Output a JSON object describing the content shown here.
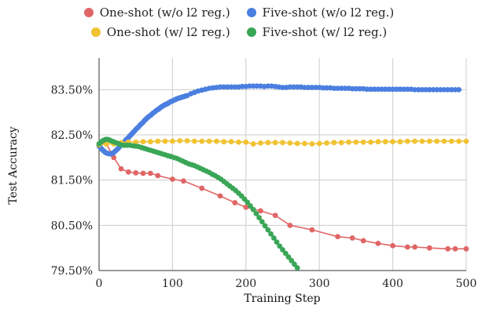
{
  "chart_data": {
    "type": "line",
    "xlabel": "Training Step",
    "ylabel": "Test Accuracy",
    "xlim": [
      0,
      500
    ],
    "ylim": [
      79.5,
      84.2
    ],
    "x_ticks": [
      0,
      100,
      200,
      300,
      400,
      500
    ],
    "x_tick_labels": [
      "0",
      "100",
      "200",
      "300",
      "400",
      "500"
    ],
    "y_ticks": [
      79.5,
      80.5,
      81.5,
      82.5,
      83.5
    ],
    "y_tick_labels": [
      "79.50%",
      "80.50%",
      "81.50%",
      "82.50%",
      "83.50%"
    ],
    "grid": true,
    "legend_position": "top",
    "series": [
      {
        "name": "One-shot (w/o l2 reg.)",
        "color": "#e06666",
        "points": [
          [
            0,
            82.3
          ],
          [
            5,
            82.35
          ],
          [
            10,
            82.3
          ],
          [
            20,
            82.0
          ],
          [
            30,
            81.75
          ],
          [
            40,
            81.68
          ],
          [
            50,
            81.66
          ],
          [
            60,
            81.65
          ],
          [
            70,
            81.65
          ],
          [
            80,
            81.6
          ],
          [
            100,
            81.52
          ],
          [
            115,
            81.48
          ],
          [
            140,
            81.32
          ],
          [
            165,
            81.15
          ],
          [
            185,
            81.0
          ],
          [
            200,
            80.9
          ],
          [
            220,
            80.82
          ],
          [
            240,
            80.72
          ],
          [
            260,
            80.5
          ],
          [
            290,
            80.4
          ],
          [
            325,
            80.25
          ],
          [
            345,
            80.22
          ],
          [
            360,
            80.16
          ],
          [
            380,
            80.1
          ],
          [
            400,
            80.05
          ],
          [
            420,
            80.02
          ],
          [
            430,
            80.02
          ],
          [
            450,
            80.0
          ],
          [
            475,
            79.98
          ],
          [
            485,
            79.98
          ],
          [
            500,
            79.98
          ]
        ]
      },
      {
        "name": "Five-shot (w/o l2 reg.)",
        "color": "#4a7fe0",
        "points": [
          [
            0,
            82.25
          ],
          [
            2,
            82.22
          ],
          [
            4,
            82.18
          ],
          [
            6,
            82.15
          ],
          [
            8,
            82.12
          ],
          [
            10,
            82.1
          ],
          [
            12,
            82.09
          ],
          [
            14,
            82.08
          ],
          [
            16,
            82.08
          ],
          [
            18,
            82.09
          ],
          [
            20,
            82.11
          ],
          [
            22,
            82.14
          ],
          [
            24,
            82.17
          ],
          [
            26,
            82.2
          ],
          [
            28,
            82.24
          ],
          [
            30,
            82.27
          ],
          [
            32,
            82.31
          ],
          [
            34,
            82.34
          ],
          [
            36,
            82.38
          ],
          [
            38,
            82.41
          ],
          [
            40,
            82.44
          ],
          [
            42,
            82.48
          ],
          [
            44,
            82.51
          ],
          [
            46,
            82.55
          ],
          [
            48,
            82.58
          ],
          [
            50,
            82.62
          ],
          [
            52,
            82.65
          ],
          [
            54,
            82.68
          ],
          [
            56,
            82.72
          ],
          [
            58,
            82.75
          ],
          [
            60,
            82.78
          ],
          [
            62,
            82.82
          ],
          [
            64,
            82.85
          ],
          [
            66,
            82.88
          ],
          [
            68,
            82.91
          ],
          [
            70,
            82.93
          ],
          [
            72,
            82.96
          ],
          [
            74,
            82.99
          ],
          [
            76,
            83.01
          ],
          [
            78,
            83.04
          ],
          [
            80,
            83.06
          ],
          [
            82,
            83.08
          ],
          [
            84,
            83.11
          ],
          [
            86,
            83.13
          ],
          [
            88,
            83.15
          ],
          [
            90,
            83.17
          ],
          [
            92,
            83.18
          ],
          [
            94,
            83.2
          ],
          [
            96,
            83.22
          ],
          [
            98,
            83.24
          ],
          [
            100,
            83.25
          ],
          [
            102,
            83.27
          ],
          [
            104,
            83.28
          ],
          [
            106,
            83.3
          ],
          [
            108,
            83.31
          ],
          [
            110,
            83.32
          ],
          [
            112,
            83.33
          ],
          [
            114,
            83.34
          ],
          [
            116,
            83.35
          ],
          [
            118,
            83.36
          ],
          [
            120,
            83.37
          ],
          [
            125,
            83.41
          ],
          [
            130,
            83.44
          ],
          [
            135,
            83.47
          ],
          [
            140,
            83.49
          ],
          [
            145,
            83.51
          ],
          [
            150,
            83.53
          ],
          [
            155,
            83.54
          ],
          [
            160,
            83.55
          ],
          [
            165,
            83.56
          ],
          [
            170,
            83.56
          ],
          [
            175,
            83.56
          ],
          [
            180,
            83.56
          ],
          [
            185,
            83.56
          ],
          [
            190,
            83.56
          ],
          [
            195,
            83.57
          ],
          [
            200,
            83.57
          ],
          [
            205,
            83.58
          ],
          [
            210,
            83.58
          ],
          [
            215,
            83.58
          ],
          [
            220,
            83.58
          ],
          [
            225,
            83.57
          ],
          [
            230,
            83.58
          ],
          [
            235,
            83.58
          ],
          [
            240,
            83.57
          ],
          [
            245,
            83.56
          ],
          [
            250,
            83.55
          ],
          [
            255,
            83.55
          ],
          [
            260,
            83.56
          ],
          [
            265,
            83.56
          ],
          [
            270,
            83.56
          ],
          [
            275,
            83.56
          ],
          [
            280,
            83.55
          ],
          [
            285,
            83.55
          ],
          [
            290,
            83.55
          ],
          [
            295,
            83.55
          ],
          [
            300,
            83.55
          ],
          [
            305,
            83.54
          ],
          [
            310,
            83.54
          ],
          [
            315,
            83.54
          ],
          [
            320,
            83.53
          ],
          [
            325,
            83.53
          ],
          [
            330,
            83.53
          ],
          [
            335,
            83.53
          ],
          [
            340,
            83.53
          ],
          [
            345,
            83.52
          ],
          [
            350,
            83.52
          ],
          [
            355,
            83.52
          ],
          [
            360,
            83.52
          ],
          [
            365,
            83.51
          ],
          [
            370,
            83.51
          ],
          [
            375,
            83.51
          ],
          [
            380,
            83.51
          ],
          [
            385,
            83.51
          ],
          [
            390,
            83.51
          ],
          [
            395,
            83.51
          ],
          [
            400,
            83.51
          ],
          [
            405,
            83.51
          ],
          [
            410,
            83.51
          ],
          [
            415,
            83.51
          ],
          [
            420,
            83.51
          ],
          [
            425,
            83.51
          ],
          [
            430,
            83.5
          ],
          [
            435,
            83.5
          ],
          [
            440,
            83.5
          ],
          [
            445,
            83.5
          ],
          [
            450,
            83.5
          ],
          [
            455,
            83.5
          ],
          [
            460,
            83.5
          ],
          [
            465,
            83.5
          ],
          [
            470,
            83.5
          ],
          [
            475,
            83.5
          ],
          [
            480,
            83.5
          ],
          [
            485,
            83.5
          ],
          [
            490,
            83.5
          ]
        ]
      },
      {
        "name": "One-shot (w/ l2 reg.)",
        "color": "#f1c232",
        "points": [
          [
            0,
            82.28
          ],
          [
            10,
            82.3
          ],
          [
            20,
            82.3
          ],
          [
            30,
            82.33
          ],
          [
            40,
            82.34
          ],
          [
            50,
            82.34
          ],
          [
            60,
            82.35
          ],
          [
            70,
            82.35
          ],
          [
            80,
            82.36
          ],
          [
            90,
            82.36
          ],
          [
            100,
            82.36
          ],
          [
            110,
            82.37
          ],
          [
            120,
            82.37
          ],
          [
            130,
            82.36
          ],
          [
            140,
            82.36
          ],
          [
            150,
            82.36
          ],
          [
            160,
            82.36
          ],
          [
            170,
            82.35
          ],
          [
            180,
            82.35
          ],
          [
            190,
            82.34
          ],
          [
            200,
            82.34
          ],
          [
            210,
            82.3
          ],
          [
            220,
            82.32
          ],
          [
            230,
            82.33
          ],
          [
            240,
            82.33
          ],
          [
            250,
            82.33
          ],
          [
            260,
            82.32
          ],
          [
            270,
            82.31
          ],
          [
            280,
            82.31
          ],
          [
            290,
            82.3
          ],
          [
            300,
            82.31
          ],
          [
            310,
            82.32
          ],
          [
            320,
            82.33
          ],
          [
            330,
            82.33
          ],
          [
            340,
            82.34
          ],
          [
            350,
            82.34
          ],
          [
            360,
            82.34
          ],
          [
            370,
            82.34
          ],
          [
            380,
            82.35
          ],
          [
            390,
            82.35
          ],
          [
            400,
            82.35
          ],
          [
            410,
            82.35
          ],
          [
            420,
            82.36
          ],
          [
            430,
            82.36
          ],
          [
            440,
            82.36
          ],
          [
            450,
            82.36
          ],
          [
            460,
            82.36
          ],
          [
            470,
            82.36
          ],
          [
            480,
            82.36
          ],
          [
            490,
            82.36
          ],
          [
            500,
            82.36
          ]
        ]
      },
      {
        "name": "Five-shot (w/ l2 reg.)",
        "color": "#3aa657",
        "points": [
          [
            0,
            82.3
          ],
          [
            3,
            82.35
          ],
          [
            6,
            82.38
          ],
          [
            9,
            82.4
          ],
          [
            12,
            82.4
          ],
          [
            15,
            82.38
          ],
          [
            18,
            82.36
          ],
          [
            21,
            82.34
          ],
          [
            24,
            82.32
          ],
          [
            27,
            82.3
          ],
          [
            30,
            82.28
          ],
          [
            34,
            82.27
          ],
          [
            38,
            82.27
          ],
          [
            42,
            82.27
          ],
          [
            46,
            82.26
          ],
          [
            50,
            82.25
          ],
          [
            54,
            82.24
          ],
          [
            58,
            82.22
          ],
          [
            62,
            82.2
          ],
          [
            66,
            82.18
          ],
          [
            70,
            82.16
          ],
          [
            74,
            82.14
          ],
          [
            78,
            82.12
          ],
          [
            82,
            82.1
          ],
          [
            86,
            82.08
          ],
          [
            90,
            82.06
          ],
          [
            94,
            82.04
          ],
          [
            98,
            82.02
          ],
          [
            102,
            82.0
          ],
          [
            106,
            81.98
          ],
          [
            110,
            81.95
          ],
          [
            114,
            81.92
          ],
          [
            118,
            81.89
          ],
          [
            122,
            81.86
          ],
          [
            126,
            81.84
          ],
          [
            130,
            81.82
          ],
          [
            134,
            81.79
          ],
          [
            138,
            81.76
          ],
          [
            142,
            81.73
          ],
          [
            146,
            81.7
          ],
          [
            150,
            81.67
          ],
          [
            154,
            81.63
          ],
          [
            158,
            81.6
          ],
          [
            162,
            81.56
          ],
          [
            166,
            81.52
          ],
          [
            170,
            81.47
          ],
          [
            174,
            81.42
          ],
          [
            178,
            81.37
          ],
          [
            182,
            81.32
          ],
          [
            186,
            81.27
          ],
          [
            190,
            81.21
          ],
          [
            194,
            81.15
          ],
          [
            198,
            81.08
          ],
          [
            202,
            81.01
          ],
          [
            206,
            80.93
          ],
          [
            210,
            80.85
          ],
          [
            214,
            80.76
          ],
          [
            218,
            80.67
          ],
          [
            222,
            80.58
          ],
          [
            226,
            80.49
          ],
          [
            230,
            80.4
          ],
          [
            234,
            80.31
          ],
          [
            238,
            80.22
          ],
          [
            242,
            80.13
          ],
          [
            246,
            80.04
          ],
          [
            250,
            79.96
          ],
          [
            254,
            79.88
          ],
          [
            258,
            79.8
          ],
          [
            262,
            79.72
          ],
          [
            266,
            79.64
          ],
          [
            270,
            79.56
          ],
          [
            275,
            79.45
          ]
        ]
      }
    ]
  }
}
